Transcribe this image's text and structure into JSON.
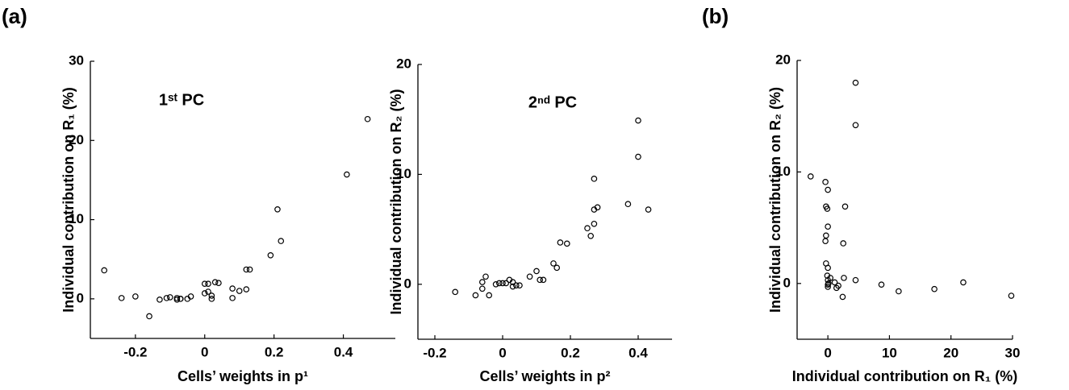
{
  "chart_data": [
    {
      "type": "scatter",
      "panel_label": "(a)",
      "title": "1ˢᵗ PC",
      "color": "#000000",
      "x_label": "Cells’ weights in p¹",
      "y_label": "Individual contribution on R₁ (%)",
      "xlim": [
        -0.33,
        0.55
      ],
      "ylim": [
        -5,
        30
      ],
      "xticks": [
        -0.2,
        0,
        0.2,
        0.4
      ],
      "yticks": [
        0,
        10,
        20,
        30
      ],
      "x": [
        -0.29,
        -0.24,
        -0.2,
        -0.16,
        -0.13,
        -0.11,
        -0.1,
        -0.08,
        -0.08,
        -0.07,
        -0.07,
        -0.05,
        -0.04,
        0,
        0,
        0.01,
        0.03,
        0.04,
        0.01,
        0.02,
        0.02,
        0.08,
        0.08,
        0.1,
        0.12,
        0.12,
        0.13,
        0.19,
        0.21,
        0.22,
        0.41,
        0.47
      ],
      "y": [
        3.6,
        0.1,
        0.3,
        -2.2,
        -0.1,
        0.1,
        0.2,
        0.1,
        -0.1,
        0,
        0,
        0,
        0.3,
        0.7,
        1.9,
        1.9,
        2.1,
        2.0,
        0.9,
        0.4,
        0,
        1.3,
        0.1,
        1.0,
        1.2,
        3.7,
        3.7,
        5.5,
        11.3,
        7.3,
        15.7,
        22.7
      ]
    },
    {
      "type": "scatter",
      "title": "2ⁿᵈ PC",
      "color": "#000000",
      "x_label": "Cells’ weights in p²",
      "y_label": "Individual contribution on R₂ (%)",
      "xlim": [
        -0.25,
        0.5
      ],
      "ylim": [
        -5,
        20
      ],
      "xticks": [
        -0.2,
        0,
        0.2,
        0.4
      ],
      "yticks": [
        0,
        10,
        20
      ],
      "x": [
        -0.14,
        -0.08,
        -0.06,
        -0.05,
        -0.06,
        -0.04,
        -0.02,
        -0.01,
        0,
        0.01,
        0.02,
        0.03,
        0.03,
        0.04,
        0.05,
        0.08,
        0.1,
        0.11,
        0.12,
        0.15,
        0.16,
        0.17,
        0.19,
        0.25,
        0.26,
        0.27,
        0.27,
        0.28,
        0.27,
        0.37,
        0.4,
        0.4,
        0.43
      ],
      "y": [
        -0.7,
        -1.0,
        0.2,
        0.7,
        -0.4,
        -1.0,
        0,
        0.1,
        0.1,
        0.1,
        0.4,
        0.2,
        -0.2,
        -0.1,
        -0.1,
        0.7,
        1.2,
        0.4,
        0.4,
        1.9,
        1.5,
        3.8,
        3.7,
        5.1,
        4.4,
        5.5,
        6.8,
        7.0,
        9.6,
        7.3,
        14.9,
        11.6,
        6.8
      ]
    },
    {
      "type": "scatter",
      "panel_label": "(b)",
      "color": "#000000",
      "x_label": "Individual contribution on R₁ (%)",
      "y_label": "Individual contribution on R₂ (%)",
      "xlim": [
        -5,
        30
      ],
      "ylim": [
        -5,
        20
      ],
      "xticks": [
        0,
        10,
        20,
        30
      ],
      "yticks": [
        0,
        10,
        20
      ],
      "x": [
        -2.8,
        -0.4,
        0,
        -0.3,
        -0.1,
        0,
        -0.3,
        -0.4,
        -0.3,
        0,
        -0.1,
        0,
        0,
        0,
        0.1,
        0.4,
        1.1,
        1.4,
        1.7,
        2.4,
        2.5,
        2.8,
        2.6,
        4.5,
        4.5,
        4.5,
        8.7,
        11.5,
        17.3,
        22.0,
        29.8
      ],
      "y": [
        9.6,
        9.1,
        8.4,
        6.9,
        6.7,
        5.1,
        4.3,
        3.8,
        1.8,
        1.4,
        0.7,
        0.3,
        -0.1,
        -0.3,
        0,
        0.5,
        0.1,
        -0.4,
        -0.2,
        -1.2,
        3.6,
        6.9,
        0.5,
        0.3,
        14.2,
        18.0,
        -0.1,
        -0.7,
        -0.5,
        0.1,
        -1.1
      ]
    }
  ]
}
